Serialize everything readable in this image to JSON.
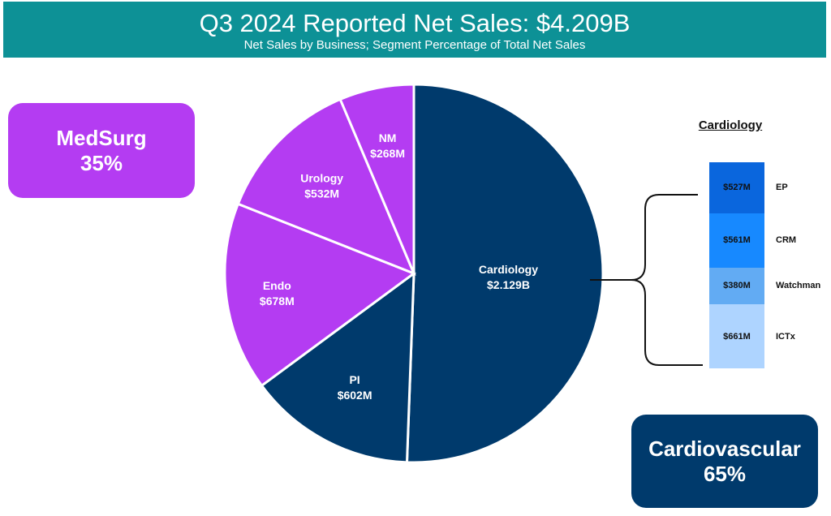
{
  "header": {
    "title": "Q3 2024 Reported Net Sales: $4.209B",
    "subtitle": "Net Sales by Business; Segment Percentage of Total Net Sales"
  },
  "medsurg": {
    "name": "MedSurg",
    "pct": "35%",
    "color": "#b43cf2"
  },
  "cardiovascular": {
    "name": "Cardiovascular",
    "pct": "65%",
    "color": "#003a6c"
  },
  "chart_data": {
    "type": "pie",
    "title": "",
    "unit": "$M",
    "slices": [
      {
        "name": "Cardiology",
        "label": "$2.129B",
        "value": 2129,
        "color": "#003a6c",
        "text": "#ffffff"
      },
      {
        "name": "PI",
        "label": "$602M",
        "value": 602,
        "color": "#003a6c",
        "text": "#ffffff"
      },
      {
        "name": "Endo",
        "label": "$678M",
        "value": 678,
        "color": "#b43cf2",
        "text": "#ffffff"
      },
      {
        "name": "Urology",
        "label": "$532M",
        "value": 532,
        "color": "#b43cf2",
        "text": "#ffffff"
      },
      {
        "name": "NM",
        "label": "$268M",
        "value": 268,
        "color": "#b43cf2",
        "text": "#ffffff"
      }
    ],
    "breakdown": {
      "title": "Cardiology",
      "parent": "Cardiology",
      "segments": [
        {
          "name": "EP",
          "label": "$527M",
          "value": 527,
          "color": "#0a66dd"
        },
        {
          "name": "CRM",
          "label": "$561M",
          "value": 561,
          "color": "#1789ff"
        },
        {
          "name": "Watchman",
          "label": "$380M",
          "value": 380,
          "color": "#62abf3"
        },
        {
          "name": "ICTx",
          "label": "$661M",
          "value": 661,
          "color": "#aed4ff"
        }
      ]
    }
  }
}
